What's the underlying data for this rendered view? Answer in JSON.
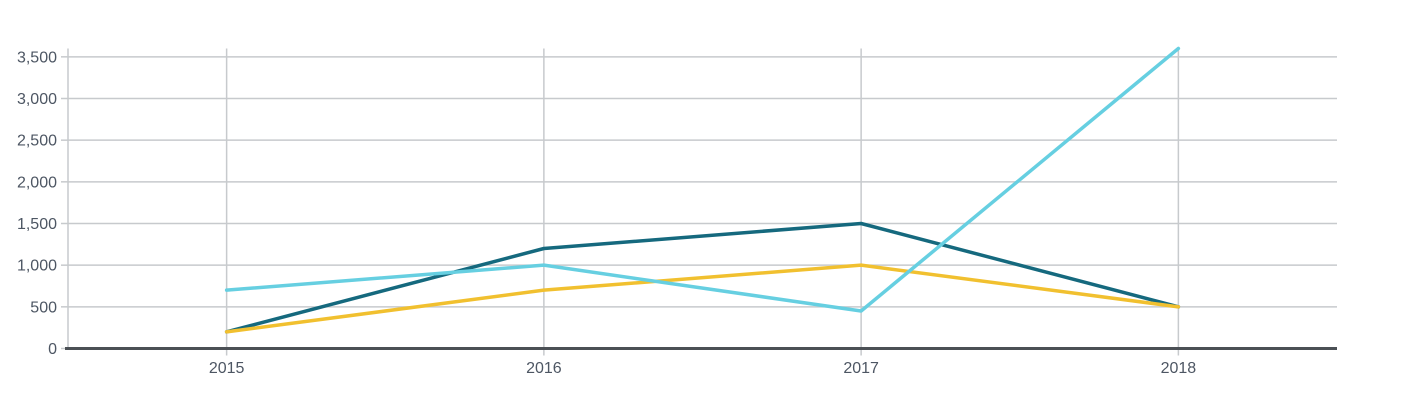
{
  "chart_data": {
    "type": "line",
    "title": "",
    "xlabel": "",
    "ylabel": "",
    "categories": [
      "2015",
      "2016",
      "2017",
      "2018"
    ],
    "series": [
      {
        "name": "teal",
        "color": "#15697e",
        "values": [
          200,
          1200,
          1500,
          500
        ]
      },
      {
        "name": "yellow",
        "color": "#f1c02f",
        "values": [
          200,
          700,
          1000,
          500
        ]
      },
      {
        "name": "cyan",
        "color": "#66cfe1",
        "values": [
          700,
          1000,
          450,
          3600
        ]
      }
    ],
    "ylim": [
      0,
      3600
    ],
    "yticks": [
      0,
      500,
      1000,
      1500,
      2000,
      2500,
      3000,
      3500
    ],
    "ytick_labels": [
      "0",
      "500",
      "1,000",
      "1,500",
      "2,000",
      "2,500",
      "3,000",
      "3,500"
    ],
    "grid": true,
    "legend": "none",
    "colors": {
      "gridline": "#c7cacd",
      "axis_line": "#4b5055",
      "tick_text": "#4d5663",
      "background": "#ffffff"
    }
  }
}
